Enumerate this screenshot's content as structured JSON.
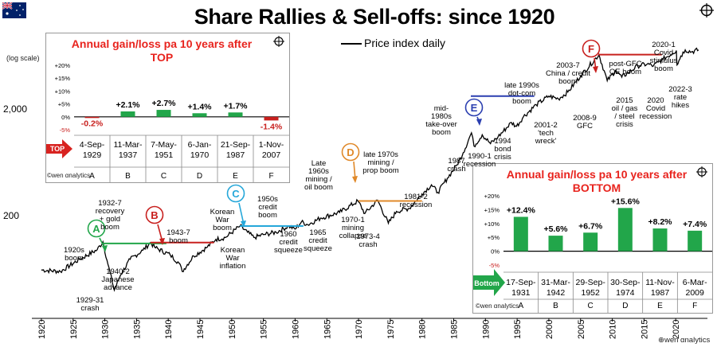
{
  "title": "Share Rallies & Sell-offs: since 1920",
  "legend": "Price index daily",
  "scale_note": "(log scale)",
  "logo": "wen αnalytics",
  "colors": {
    "green": "#22a64a",
    "red": "#c8201e",
    "blue": "#2b3fb0",
    "cyan": "#25a7d9",
    "orange": "#e0892a",
    "darkred": "#9c1f24"
  },
  "chart_data": [
    {
      "type": "line",
      "title": "Share Rallies & Sell-offs: since 1920",
      "series": [
        {
          "name": "Price index daily",
          "x": [
            1920,
            1923,
            1926,
            1928.8,
            1929.7,
            1930.5,
            1931.5,
            1932.5,
            1934,
            1936,
            1937.2,
            1938,
            1940.3,
            1941.7,
            1942.2,
            1944,
            1946,
            1947.5,
            1949,
            1951.3,
            1952.5,
            1953.5,
            1955,
            1957,
            1959,
            1960,
            1961,
            1962,
            1964,
            1967,
            1969.9,
            1971,
            1973,
            1974.7,
            1976,
            1978,
            1980,
            1981.5,
            1982.5,
            1984,
            1985.5,
            1986.5,
            1987.8,
            1988.2,
            1989.5,
            1990.8,
            1992,
            1994.1,
            1994.9,
            1996,
            1998,
            2000,
            2001.5,
            2003,
            2005,
            2007.9,
            2009.2,
            2010.5,
            2011.5,
            2012.5,
            2014,
            2015.5,
            2016.5,
            2018,
            2019.5,
            2020.1,
            2020.2,
            2020.8,
            2021.5,
            2022.5,
            2023.6
          ],
          "y": [
            62,
            60,
            78,
            96,
            114,
            70,
            40,
            56,
            78,
            95,
            112,
            100,
            86,
            72,
            60,
            84,
            100,
            120,
            125,
            160,
            140,
            125,
            133,
            140,
            160,
            150,
            175,
            165,
            190,
            215,
            275,
            210,
            280,
            170,
            220,
            235,
            320,
            390,
            330,
            450,
            600,
            780,
            1200,
            900,
            1150,
            950,
            1100,
            1500,
            1380,
            1700,
            2200,
            2650,
            2500,
            2900,
            4100,
            6500,
            3700,
            4600,
            4000,
            4400,
            5100,
            5300,
            5100,
            5900,
            6700,
            7100,
            5200,
            6300,
            7200,
            6900,
            7200
          ]
        }
      ],
      "xlim": [
        1918.5,
        2025
      ],
      "x_ticks": [
        1920,
        1925,
        1930,
        1935,
        1940,
        1945,
        1950,
        1955,
        1960,
        1965,
        1970,
        1975,
        1980,
        1985,
        1990,
        1995,
        2000,
        2005,
        2010,
        2015,
        2020
      ],
      "y_scale": "log",
      "y_ticks": [
        {
          "value": 200,
          "label": "200"
        },
        {
          "value": 2000,
          "label": "2,000"
        }
      ],
      "ylim": [
        25,
        14000
      ],
      "periods": [
        {
          "letter": "A",
          "color": "#22a64a",
          "start": 1929.7,
          "end": 1939.7,
          "level": 110
        },
        {
          "letter": "B",
          "color": "#c8201e",
          "start": 1937.2,
          "end": 1947.2,
          "level": 112
        },
        {
          "letter": "C",
          "color": "#25a7d9",
          "start": 1951.3,
          "end": 1961.3,
          "level": 160
        },
        {
          "letter": "D",
          "color": "#e0892a",
          "start": 1970.0,
          "end": 1980.0,
          "level": 275
        },
        {
          "letter": "E",
          "color": "#2b3fb0",
          "start": 1987.7,
          "end": 1997.7,
          "level": 2650
        },
        {
          "letter": "F",
          "color": "#c8201e",
          "start": 2007.8,
          "end": 2017.8,
          "level": 6500
        }
      ],
      "annotations": [
        {
          "lines": [
            "1920s",
            "boom"
          ]
        },
        {
          "lines": [
            "1929-31",
            "crash"
          ]
        },
        {
          "lines": [
            "1932-7",
            "recovery",
            "+ gold",
            "boom"
          ]
        },
        {
          "lines": [
            "1940-2",
            "Japanese",
            "advance"
          ]
        },
        {
          "lines": [
            "1943-7",
            "boom"
          ]
        },
        {
          "lines": [
            "Korean",
            "War",
            "boom"
          ]
        },
        {
          "lines": [
            "Korean",
            "War",
            "inflation"
          ]
        },
        {
          "lines": [
            "1950s",
            "credit",
            "boom"
          ]
        },
        {
          "lines": [
            "1960",
            "credit",
            "squeeze"
          ]
        },
        {
          "lines": [
            "1965",
            "credit",
            "squeeze"
          ]
        },
        {
          "lines": [
            "Late",
            "1960s",
            "mining /",
            "oil boom"
          ]
        },
        {
          "lines": [
            "1970-1",
            "mining",
            "collapse"
          ]
        },
        {
          "lines": [
            "1973-4",
            "crash"
          ]
        },
        {
          "lines": [
            "late 1970s",
            "mining /",
            "prop boom"
          ]
        },
        {
          "lines": [
            "1981-2",
            "recession"
          ]
        },
        {
          "lines": [
            "mid-",
            "1980s",
            "take-over",
            "boom"
          ]
        },
        {
          "lines": [
            "1987",
            "crash"
          ]
        },
        {
          "lines": [
            "1990-1",
            "recession"
          ]
        },
        {
          "lines": [
            "1994",
            "bond",
            "crisis"
          ]
        },
        {
          "lines": [
            "late 1990s",
            "dot-com",
            "boom"
          ]
        },
        {
          "lines": [
            "2001-2",
            "'tech",
            "wreck'"
          ]
        },
        {
          "lines": [
            "2003-7",
            "China / credit",
            "boom"
          ]
        },
        {
          "lines": [
            "2008-9",
            "GFC"
          ]
        },
        {
          "lines": [
            "post-GFC",
            "QE boom"
          ]
        },
        {
          "lines": [
            "2015",
            "oil / gas",
            "/ steel",
            "crisis"
          ]
        },
        {
          "lines": [
            "2020",
            "Covid",
            "recession"
          ]
        },
        {
          "lines": [
            "2020-1",
            "Covid",
            "stimulus",
            "boom"
          ]
        },
        {
          "lines": [
            "2022-3",
            "rate",
            "hikes"
          ]
        }
      ]
    },
    {
      "type": "bar",
      "title": "Annual gain/loss pa 10 years after TOP",
      "row_label": "TOP",
      "categories": [
        "A",
        "B",
        "C",
        "D",
        "E",
        "F"
      ],
      "dates": [
        [
          "4-Sep-",
          "1929"
        ],
        [
          "11-Mar-",
          "1937"
        ],
        [
          "7-May-",
          "1951"
        ],
        [
          "6-Jan-",
          "1970"
        ],
        [
          "21-Sep-",
          "1987"
        ],
        [
          "1-Nov-",
          "2007"
        ]
      ],
      "values": [
        -0.2,
        2.1,
        2.7,
        1.4,
        1.7,
        -1.4
      ],
      "labels": [
        "-0.2%",
        "+2.1%",
        "+2.7%",
        "+1.4%",
        "+1.7%",
        "-1.4%"
      ],
      "y_ticks": [
        "+20%",
        "+15%",
        "+10%",
        "+5%",
        "0%",
        "-5%"
      ],
      "ylim": [
        -5,
        20
      ]
    },
    {
      "type": "bar",
      "title": "Annual gain/loss pa 10 years after BOTTOM",
      "row_label": "Bottom",
      "categories": [
        "A",
        "B",
        "C",
        "D",
        "E",
        "F"
      ],
      "dates": [
        [
          "17-Sep-",
          "1931"
        ],
        [
          "31-Mar-",
          "1942"
        ],
        [
          "29-Sep-",
          "1952"
        ],
        [
          "30-Sep-",
          "1974"
        ],
        [
          "11-Nov-",
          "1987"
        ],
        [
          "6-Mar-",
          "2009"
        ]
      ],
      "values": [
        12.4,
        5.6,
        6.7,
        15.6,
        8.2,
        7.4
      ],
      "labels": [
        "+12.4%",
        "+5.6%",
        "+6.7%",
        "+15.6%",
        "+8.2%",
        "+7.4%"
      ],
      "y_ticks": [
        "+20%",
        "+15%",
        "+10%",
        "+5%",
        "0%",
        "-5%"
      ],
      "ylim": [
        -5,
        20
      ]
    }
  ]
}
